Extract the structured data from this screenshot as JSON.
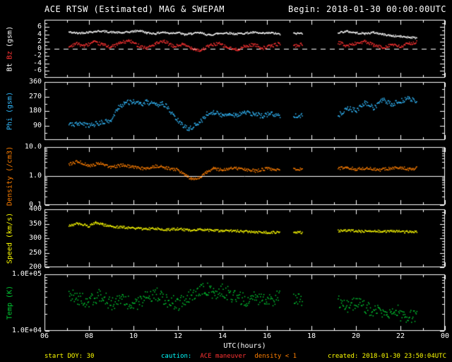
{
  "title": "ACE RTSW (Estimated) MAG & SWEPAM",
  "begin_label": "Begin: 2018-01-30 00:00:00UTC",
  "xlabel": "UTC(hours)",
  "footer": {
    "start_doy": "start DOY: 30",
    "caution_label": "caution:",
    "caution_maneuver": "ACE maneuver",
    "caution_density": "density < 1",
    "created": "created: 2018-01-30 23:50:04UTC"
  },
  "colors": {
    "background": "#000000",
    "frame": "#ffffff",
    "bt": "#ffffff",
    "bz": "#ff3333",
    "phi": "#33bbff",
    "density": "#ff7f00",
    "speed": "#ffff00",
    "temp": "#00cc33",
    "footer_yellow": "#ffff00",
    "caution_cyan": "#00ffff"
  },
  "x_axis": {
    "min": 6,
    "max": 24,
    "ticks": [
      {
        "v": 6,
        "label": "06"
      },
      {
        "v": 8,
        "label": "08"
      },
      {
        "v": 10,
        "label": "10"
      },
      {
        "v": 12,
        "label": "12"
      },
      {
        "v": 14,
        "label": "14"
      },
      {
        "v": 16,
        "label": "16"
      },
      {
        "v": 18,
        "label": "18"
      },
      {
        "v": 20,
        "label": "20"
      },
      {
        "v": 22,
        "label": "22"
      },
      {
        "v": 24,
        "label": "00"
      }
    ]
  },
  "chart_data": [
    {
      "type": "scatter",
      "name": "bt-bz-panel",
      "ylabel_parts": [
        {
          "text": "Bt",
          "color": "#ffffff"
        },
        {
          "text": "Bz",
          "color": "#ff3333"
        },
        {
          "text": "(gsm)",
          "color": "#ffffff"
        }
      ],
      "scale": "linear",
      "ylim": [
        -8,
        8
      ],
      "yticks": [
        {
          "v": 6,
          "label": "6"
        },
        {
          "v": 4,
          "label": "4"
        },
        {
          "v": 2,
          "label": "2"
        },
        {
          "v": 0,
          "label": "0"
        },
        {
          "v": -2,
          "label": "-2"
        },
        {
          "v": -4,
          "label": "-4"
        },
        {
          "v": -6,
          "label": "-6"
        }
      ],
      "yminor": [
        -7,
        -5,
        -3,
        -1,
        1,
        3,
        5,
        7
      ],
      "refline": {
        "v": 0,
        "dash": [
          7,
          6
        ],
        "color": "#ffffff"
      },
      "series": [
        {
          "name": "Bt",
          "color": "#ffffff",
          "jitter": 0.25,
          "segments": [
            {
              "t": [
                7.1,
                7.5,
                8.0,
                8.5,
                9.0,
                9.5,
                10.0,
                10.3,
                10.6,
                11.0,
                11.3,
                11.6,
                12.0,
                12.3,
                12.6,
                13.0,
                13.4,
                13.8,
                14.2,
                14.6,
                15.0,
                15.4,
                15.8,
                16.2,
                16.6
              ],
              "v": [
                4.6,
                4.3,
                4.6,
                4.9,
                4.6,
                4.4,
                4.8,
                5.0,
                4.4,
                4.2,
                4.6,
                4.3,
                4.5,
                3.9,
                4.2,
                4.4,
                3.8,
                4.2,
                4.4,
                4.1,
                4.3,
                4.5,
                4.2,
                4.4,
                4.0
              ]
            },
            {
              "t": [
                17.2,
                17.6
              ],
              "v": [
                4.2,
                4.3
              ]
            },
            {
              "t": [
                19.2,
                19.6,
                20.0,
                20.4,
                20.8,
                21.2,
                21.6,
                22.0,
                22.4,
                22.75
              ],
              "v": [
                4.5,
                4.8,
                4.4,
                4.2,
                4.5,
                4.0,
                3.6,
                3.4,
                3.2,
                3.0
              ]
            }
          ]
        },
        {
          "name": "Bz",
          "color": "#ff3333",
          "jitter": 0.45,
          "segments": [
            {
              "t": [
                7.1,
                7.4,
                7.8,
                8.2,
                8.6,
                9.0,
                9.4,
                9.8,
                10.2,
                10.6,
                11.0,
                11.4,
                11.8,
                12.2,
                12.6,
                13.0,
                13.4,
                13.8,
                14.2,
                14.6,
                15.0,
                15.4,
                15.8,
                16.2,
                16.6
              ],
              "v": [
                0.5,
                1.5,
                0.8,
                1.8,
                1.2,
                0.5,
                1.6,
                2.2,
                1.0,
                0.2,
                1.4,
                2.0,
                0.6,
                1.2,
                0.3,
                -0.5,
                0.8,
                1.5,
                0.4,
                -0.3,
                0.6,
                1.2,
                0.2,
                0.8,
                1.5
              ]
            },
            {
              "t": [
                17.2,
                17.6
              ],
              "v": [
                0.8,
                1.2
              ]
            },
            {
              "t": [
                19.2,
                19.6,
                20.0,
                20.4,
                20.8,
                21.2,
                21.6,
                22.0,
                22.4,
                22.75
              ],
              "v": [
                1.8,
                0.8,
                1.5,
                2.0,
                1.0,
                0.3,
                1.2,
                0.5,
                1.5,
                1.8
              ]
            }
          ]
        }
      ]
    },
    {
      "type": "scatter",
      "name": "phi-panel",
      "ylabel_parts": [
        {
          "text": "Phi (gsm)",
          "color": "#33bbff"
        }
      ],
      "scale": "linear",
      "ylim": [
        0,
        360
      ],
      "yticks": [
        {
          "v": 360,
          "label": "360"
        },
        {
          "v": 270,
          "label": "270"
        },
        {
          "v": 180,
          "label": "180"
        },
        {
          "v": 90,
          "label": "90"
        }
      ],
      "yminor": [
        45,
        135,
        225,
        315
      ],
      "series": [
        {
          "name": "Phi",
          "color": "#33bbff",
          "jitter": 15,
          "segments": [
            {
              "t": [
                7.1,
                7.5,
                8.0,
                8.5,
                9.0,
                9.3,
                9.6,
                10.0,
                10.3,
                10.6,
                11.0,
                11.3,
                11.5,
                11.8,
                12.0,
                12.2,
                12.5,
                12.8,
                13.0,
                13.3,
                13.6,
                14.0,
                14.3,
                14.6,
                15.0,
                15.4,
                15.8,
                16.2,
                16.6
              ],
              "v": [
                95,
                100,
                90,
                105,
                120,
                200,
                230,
                240,
                220,
                235,
                215,
                230,
                205,
                150,
                120,
                90,
                70,
                95,
                110,
                160,
                175,
                150,
                165,
                155,
                170,
                160,
                150,
                165,
                145
              ]
            },
            {
              "t": [
                17.2,
                17.6
              ],
              "v": [
                155,
                150
              ]
            },
            {
              "t": [
                19.2,
                19.6,
                20.0,
                20.4,
                20.8,
                21.2,
                21.6,
                22.0,
                22.4,
                22.75
              ],
              "v": [
                150,
                200,
                180,
                230,
                200,
                250,
                220,
                240,
                260,
                235
              ]
            }
          ]
        }
      ]
    },
    {
      "type": "scatter",
      "name": "density-panel",
      "ylabel_parts": [
        {
          "text": "Density (/cm3)",
          "color": "#ff7f00"
        }
      ],
      "scale": "log",
      "ylim": [
        0.1,
        10
      ],
      "yticks": [
        {
          "v": 10,
          "label": "10.0"
        },
        {
          "v": 1,
          "label": "1.0"
        },
        {
          "v": 0.1,
          "label": "0.1"
        }
      ],
      "yminor": [
        0.2,
        0.3,
        0.4,
        0.5,
        0.6,
        0.7,
        0.8,
        0.9,
        2,
        3,
        4,
        5,
        6,
        7,
        8,
        9
      ],
      "refline": {
        "v": 1,
        "dash": [],
        "color": "#ffffff"
      },
      "series": [
        {
          "name": "Density",
          "color": "#ff7f00",
          "jitter": 0.05,
          "segments": [
            {
              "t": [
                7.1,
                7.5,
                8.0,
                8.5,
                9.0,
                9.5,
                10.0,
                10.5,
                11.0,
                11.5,
                12.0,
                12.3,
                12.6,
                13.0,
                13.3,
                13.6,
                14.0,
                14.5,
                15.0,
                15.5,
                16.0,
                16.6
              ],
              "v": [
                2.5,
                3.2,
                2.2,
                2.8,
                2.0,
                2.4,
                2.0,
                1.8,
                2.2,
                1.9,
                1.6,
                1.1,
                0.8,
                0.9,
                1.4,
                1.8,
                1.6,
                1.9,
                1.7,
                1.5,
                1.8,
                1.6
              ]
            },
            {
              "t": [
                17.2,
                17.6
              ],
              "v": [
                1.8,
                1.7
              ]
            },
            {
              "t": [
                19.2,
                19.6,
                20.0,
                20.5,
                21.0,
                21.5,
                22.0,
                22.4,
                22.75
              ],
              "v": [
                1.8,
                2.0,
                1.7,
                1.9,
                1.6,
                1.8,
                2.0,
                1.7,
                1.9
              ]
            }
          ]
        }
      ]
    },
    {
      "type": "scatter",
      "name": "speed-panel",
      "ylabel_parts": [
        {
          "text": "Speed (km/s)",
          "color": "#ffff00"
        }
      ],
      "scale": "linear",
      "ylim": [
        200,
        400
      ],
      "yticks": [
        {
          "v": 400,
          "label": "400"
        },
        {
          "v": 350,
          "label": "350"
        },
        {
          "v": 300,
          "label": "300"
        },
        {
          "v": 250,
          "label": "250"
        },
        {
          "v": 200,
          "label": "200"
        }
      ],
      "yminor": [
        210,
        220,
        230,
        240,
        260,
        270,
        280,
        290,
        310,
        320,
        330,
        340,
        360,
        370,
        380,
        390
      ],
      "series": [
        {
          "name": "Speed",
          "color": "#ffff00",
          "jitter": 4,
          "segments": [
            {
              "t": [
                7.1,
                7.5,
                8.0,
                8.3,
                8.6,
                9.0,
                9.5,
                10.0,
                10.5,
                11.0,
                11.5,
                12.0,
                12.5,
                13.0,
                13.5,
                14.0,
                14.5,
                15.0,
                15.5,
                16.0,
                16.6
              ],
              "v": [
                345,
                350,
                342,
                355,
                348,
                340,
                338,
                335,
                332,
                334,
                330,
                332,
                328,
                330,
                327,
                325,
                326,
                323,
                322,
                320,
                321
              ]
            },
            {
              "t": [
                17.2,
                17.6
              ],
              "v": [
                319,
                320
              ]
            },
            {
              "t": [
                19.2,
                19.7,
                20.2,
                20.7,
                21.2,
                21.7,
                22.2,
                22.75
              ],
              "v": [
                325,
                327,
                324,
                326,
                323,
                325,
                322,
                324
              ]
            }
          ]
        }
      ]
    },
    {
      "type": "scatter",
      "name": "temp-panel",
      "ylabel_parts": [
        {
          "text": "Temp (K)",
          "color": "#00cc33"
        }
      ],
      "scale": "log",
      "ylim": [
        10000,
        100000
      ],
      "yticks": [
        {
          "v": 100000,
          "label": "1.0E+05"
        },
        {
          "v": 10000,
          "label": "1.0E+04"
        }
      ],
      "yminor": [
        20000,
        30000,
        40000,
        50000,
        60000,
        70000,
        80000,
        90000
      ],
      "series": [
        {
          "name": "Temp",
          "color": "#00cc33",
          "jitter": 0.12,
          "segments": [
            {
              "t": [
                7.1,
                7.5,
                8.0,
                8.5,
                9.0,
                9.5,
                10.0,
                10.5,
                11.0,
                11.5,
                12.0,
                12.5,
                13.0,
                13.3,
                13.6,
                14.0,
                14.5,
                15.0,
                15.5,
                16.0,
                16.6
              ],
              "v": [
                45000,
                38000,
                32000,
                42000,
                30000,
                35000,
                28000,
                38000,
                45000,
                35000,
                30000,
                40000,
                50000,
                55000,
                45000,
                52000,
                40000,
                35000,
                38000,
                32000,
                42000
              ]
            },
            {
              "t": [
                17.2,
                17.6
              ],
              "v": [
                36000,
                33000
              ]
            },
            {
              "t": [
                19.2,
                19.6,
                20.0,
                20.5,
                21.0,
                21.4,
                21.8,
                22.2,
                22.75
              ],
              "v": [
                35000,
                28000,
                32000,
                25000,
                22000,
                18000,
                24000,
                16000,
                20000
              ]
            }
          ]
        }
      ]
    }
  ]
}
